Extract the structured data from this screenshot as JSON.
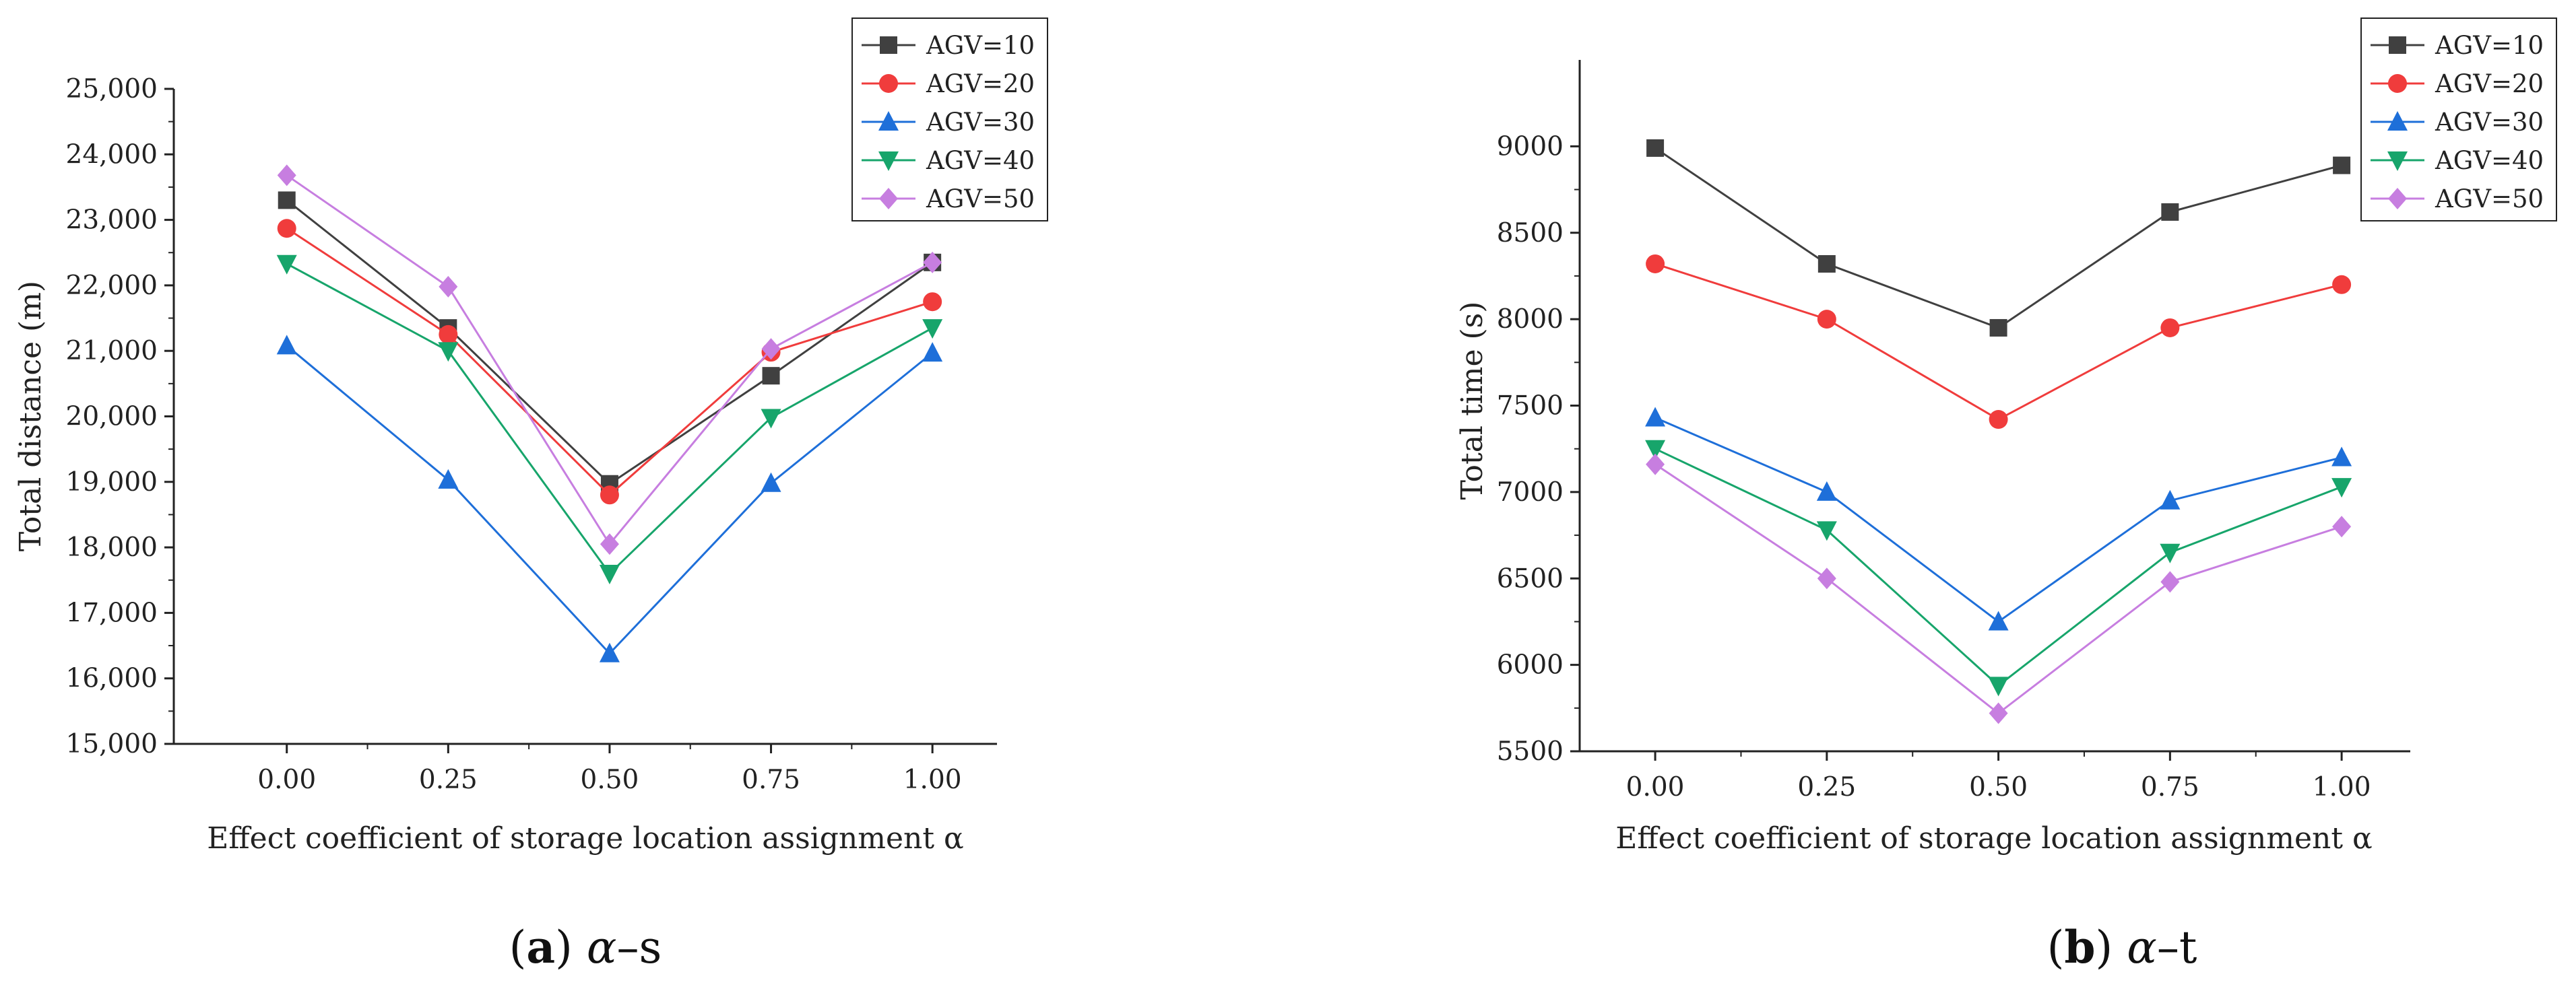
{
  "chart_data": [
    {
      "type": "line",
      "caption": {
        "letter": "a",
        "greek": "α",
        "suffix": "–s"
      },
      "xlabel": "Effect coefficient of storage location assignment α",
      "ylabel": "Total distance (m)",
      "x": [
        0,
        0.25,
        0.5,
        0.75,
        1.0
      ],
      "xtick_labels": [
        "0.00",
        "0.25",
        "0.50",
        "0.75",
        "1.00"
      ],
      "xlim": [
        -0.175,
        1.1
      ],
      "ylim": [
        15000,
        25000
      ],
      "yticks": [
        15000,
        16000,
        17000,
        18000,
        19000,
        20000,
        21000,
        22000,
        23000,
        24000,
        25000
      ],
      "ytick_labels": [
        "15,000",
        "16,000",
        "17,000",
        "18,000",
        "19,000",
        "20,000",
        "21,000",
        "22,000",
        "23,000",
        "24,000",
        "25,000"
      ],
      "legend_position": "top-right",
      "series": [
        {
          "name": "AGV=10",
          "color": "#404040",
          "marker": "square",
          "values": [
            23300,
            21350,
            18970,
            20620,
            22350
          ]
        },
        {
          "name": "AGV=20",
          "color": "#f03c3c",
          "marker": "circle",
          "values": [
            22870,
            21250,
            18800,
            20980,
            21750
          ]
        },
        {
          "name": "AGV=30",
          "color": "#1e6fd9",
          "marker": "triangle-up",
          "values": [
            21080,
            19030,
            16380,
            18980,
            20970
          ]
        },
        {
          "name": "AGV=40",
          "color": "#17a56b",
          "marker": "triangle-down",
          "values": [
            22330,
            21000,
            17600,
            19980,
            21350
          ]
        },
        {
          "name": "AGV=50",
          "color": "#c77ee0",
          "marker": "diamond",
          "values": [
            23680,
            21980,
            18050,
            21030,
            22350
          ]
        }
      ]
    },
    {
      "type": "line",
      "caption": {
        "letter": "b",
        "greek": "α",
        "suffix": "–t"
      },
      "xlabel": "Effect coefficient of storage location assignment α",
      "ylabel": "Total time (s)",
      "x": [
        0,
        0.25,
        0.5,
        0.75,
        1.0
      ],
      "xtick_labels": [
        "0.00",
        "0.25",
        "0.50",
        "0.75",
        "1.00"
      ],
      "xlim": [
        -0.11,
        1.1
      ],
      "ylim": [
        5500,
        9500
      ],
      "yticks": [
        5500,
        6000,
        6500,
        7000,
        7500,
        8000,
        8500,
        9000
      ],
      "ytick_labels": [
        "5500",
        "6000",
        "6500",
        "7000",
        "7500",
        "8000",
        "8500",
        "9000"
      ],
      "legend_position": "top-right",
      "series": [
        {
          "name": "AGV=10",
          "color": "#404040",
          "marker": "square",
          "values": [
            8990,
            8320,
            7950,
            8620,
            8890
          ]
        },
        {
          "name": "AGV=20",
          "color": "#f03c3c",
          "marker": "circle",
          "values": [
            8320,
            8000,
            7420,
            7950,
            8200
          ]
        },
        {
          "name": "AGV=30",
          "color": "#1e6fd9",
          "marker": "triangle-up",
          "values": [
            7430,
            7000,
            6250,
            6950,
            7200
          ]
        },
        {
          "name": "AGV=40",
          "color": "#17a56b",
          "marker": "triangle-down",
          "values": [
            7250,
            6780,
            5880,
            6650,
            7030
          ]
        },
        {
          "name": "AGV=50",
          "color": "#c77ee0",
          "marker": "diamond",
          "values": [
            7160,
            6500,
            5720,
            6480,
            6800
          ]
        }
      ]
    }
  ]
}
